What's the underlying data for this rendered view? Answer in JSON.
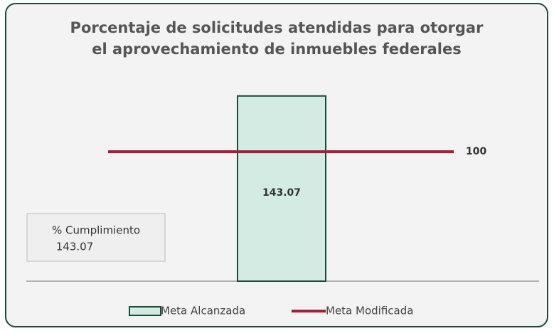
{
  "chart_data": {
    "type": "bar",
    "title": [
      "Porcentaje de solicitudes atendidas para otorgar",
      "el aprovechamiento de inmuebles federales"
    ],
    "categories": [
      null
    ],
    "series": [
      {
        "name": "Meta Alcanzada",
        "color": "#d3ebe2",
        "values": [
          143.07
        ],
        "type": "bar"
      },
      {
        "name": "Meta Modificada",
        "color": "#a3203a",
        "values": [
          100
        ],
        "type": "line"
      }
    ],
    "ylim": [
      0,
      160
    ],
    "annotation": {
      "label": "% Cumplimiento",
      "value": 143.07
    }
  }
}
